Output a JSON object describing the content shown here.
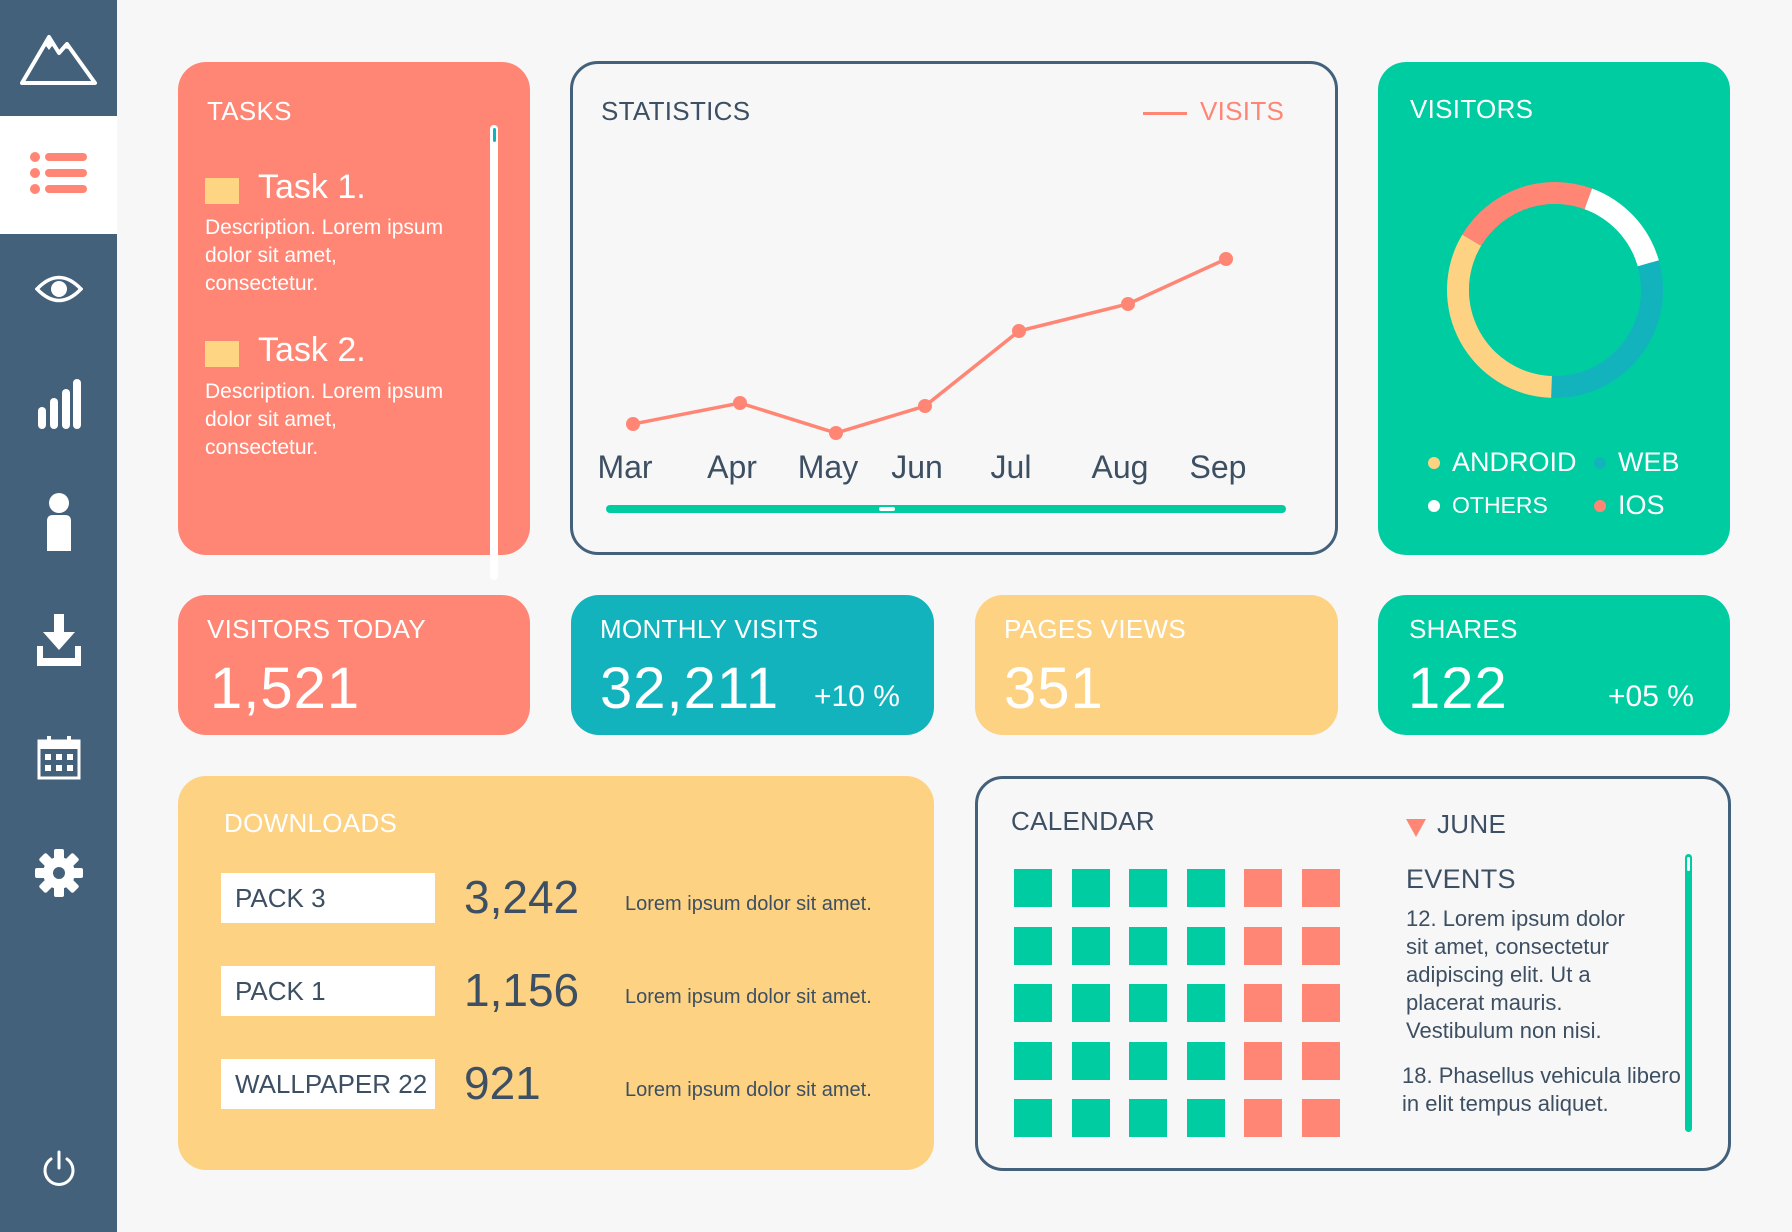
{
  "colors": {
    "coral": "#ff8674",
    "teal": "#00cca2",
    "blue": "#12b3bd",
    "yellow": "#fdd283",
    "slate": "#44617b",
    "white_dot": "#ffffff"
  },
  "sidebar": {
    "items": [
      {
        "icon": "mountain-logo-icon"
      },
      {
        "icon": "list-icon",
        "active": true
      },
      {
        "icon": "eye-icon"
      },
      {
        "icon": "bar-chart-icon"
      },
      {
        "icon": "user-icon"
      },
      {
        "icon": "download-icon"
      },
      {
        "icon": "calendar-icon"
      },
      {
        "icon": "gear-icon"
      },
      {
        "icon": "power-icon"
      }
    ]
  },
  "tasks": {
    "title": "TASKS",
    "items": [
      {
        "title": "Task 1.",
        "desc": "Description. Lorem ipsum dolor sit amet, consectetur."
      },
      {
        "title": "Task 2.",
        "desc": "Description. Lorem ipsum dolor sit amet, consectetur."
      }
    ]
  },
  "statistics": {
    "title": "STATISTICS",
    "legend": "VISITS"
  },
  "chart_data": {
    "type": "line",
    "categories": [
      "Mar",
      "Apr",
      "May",
      "Jun",
      "Jul",
      "Aug",
      "Sep"
    ],
    "series": [
      {
        "name": "VISITS",
        "values": [
          20,
          27,
          17,
          26,
          51,
          60,
          75
        ]
      }
    ],
    "ylim": [
      0,
      100
    ],
    "grid": false,
    "legend_position": "top-right"
  },
  "visitors": {
    "title": "VISITORS",
    "legend": [
      {
        "label": "ANDROID",
        "color": "#fdd283"
      },
      {
        "label": "WEB",
        "color": "#12b3bd"
      },
      {
        "label": "OTHERS",
        "color": "#ffffff"
      },
      {
        "label": "IOS",
        "color": "#ff8674"
      }
    ],
    "donut": [
      {
        "label": "OTHERS",
        "fraction": 0.15,
        "color": "#ffffff"
      },
      {
        "label": "WEB",
        "fraction": 0.3,
        "color": "#12b3bd"
      },
      {
        "label": "ANDROID",
        "fraction": 0.33,
        "color": "#fdd283"
      },
      {
        "label": "IOS",
        "fraction": 0.22,
        "color": "#ff8674"
      }
    ]
  },
  "stats": {
    "visitors_today": {
      "label": "VISITORS TODAY",
      "value": "1,521"
    },
    "monthly_visits": {
      "label": "MONTHLY VISITS",
      "value": "32,211",
      "change": "+10 %"
    },
    "pages_views": {
      "label": "PAGES VIEWS",
      "value": "351"
    },
    "shares": {
      "label": "SHARES",
      "value": "122",
      "change": "+05 %"
    }
  },
  "downloads": {
    "title": "DOWNLOADS",
    "rows": [
      {
        "name": "PACK  3",
        "count": "3,242",
        "desc": "Lorem ipsum dolor sit amet."
      },
      {
        "name": "PACK  1",
        "count": "1,156",
        "desc": "Lorem ipsum dolor sit amet."
      },
      {
        "name": "WALLPAPER 22",
        "count": "921",
        "desc": "Lorem ipsum dolor sit amet."
      }
    ]
  },
  "calendar": {
    "title": "CALENDAR",
    "month": "JUNE",
    "events_title": "EVENTS",
    "events": [
      "12. Lorem ipsum dolor sit amet, consectetur adipiscing elit. Ut a placerat mauris. Vestibulum non nisi.",
      "18. Phasellus vehicula libero in elit tempus aliquet."
    ],
    "grid_rows": 5,
    "grid_cols": 6,
    "highlight_cols": [
      4,
      5
    ]
  }
}
